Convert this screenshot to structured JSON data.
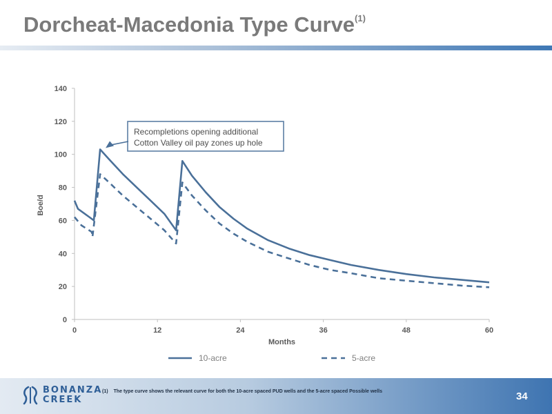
{
  "slide": {
    "title": "Dorcheat-Macedonia Type Curve",
    "title_superscript": "(1)",
    "page_number": "34",
    "footnote_marker": "(1)",
    "footnote_text": "The type curve shows the relevant curve for both the 10-acre spaced PUD wells and the 5-acre spaced Possible wells",
    "logo_line1": "BONANZA",
    "logo_line2": "CREEK"
  },
  "colors": {
    "series": "#4a7099",
    "axis_text": "#595959",
    "callout_border": "#5b7fa4",
    "title": "#7a7a7a"
  },
  "chart_data": {
    "type": "line",
    "xlabel": "Months",
    "ylabel": "Boe/d",
    "xlim": [
      0,
      60
    ],
    "ylim": [
      0,
      140
    ],
    "x_ticks": [
      0,
      12,
      24,
      36,
      48,
      60
    ],
    "y_ticks": [
      0,
      20,
      40,
      60,
      80,
      100,
      120,
      140
    ],
    "grid": false,
    "legend_position": "bottom",
    "annotation": {
      "lines": [
        "Recompletions opening additional",
        "Cotton Valley oil pay zones up hole"
      ],
      "arrow_target": [
        3.7,
        103
      ]
    },
    "series": [
      {
        "name": "10-acre",
        "style": "solid",
        "points": [
          [
            0,
            72
          ],
          [
            0.5,
            67
          ],
          [
            1.5,
            64
          ],
          [
            2.8,
            60
          ],
          [
            3.7,
            103
          ],
          [
            5,
            97
          ],
          [
            7,
            88
          ],
          [
            9,
            80
          ],
          [
            11,
            72
          ],
          [
            13,
            64
          ],
          [
            14.7,
            54
          ],
          [
            15.6,
            96
          ],
          [
            17,
            87
          ],
          [
            19,
            77
          ],
          [
            21,
            68
          ],
          [
            23,
            61
          ],
          [
            25,
            55
          ],
          [
            28,
            48
          ],
          [
            31,
            43
          ],
          [
            34,
            39
          ],
          [
            37,
            36
          ],
          [
            40,
            33
          ],
          [
            44,
            30
          ],
          [
            48,
            27.5
          ],
          [
            52,
            25.5
          ],
          [
            56,
            24
          ],
          [
            60,
            22.5
          ]
        ]
      },
      {
        "name": "5-acre",
        "style": "dashed",
        "points": [
          [
            0,
            62
          ],
          [
            1,
            57
          ],
          [
            2.5,
            53
          ],
          [
            2.6,
            50
          ],
          [
            3.7,
            88
          ],
          [
            5,
            83
          ],
          [
            7,
            75
          ],
          [
            9,
            68
          ],
          [
            11,
            61
          ],
          [
            13,
            54
          ],
          [
            14.7,
            46
          ],
          [
            15.6,
            83
          ],
          [
            17,
            75
          ],
          [
            19,
            66
          ],
          [
            21,
            58
          ],
          [
            23,
            52
          ],
          [
            25,
            47
          ],
          [
            28,
            41
          ],
          [
            31,
            37
          ],
          [
            34,
            33
          ],
          [
            37,
            30
          ],
          [
            40,
            28
          ],
          [
            44,
            25
          ],
          [
            48,
            23.5
          ],
          [
            52,
            22
          ],
          [
            56,
            20.5
          ],
          [
            60,
            19.5
          ]
        ]
      }
    ]
  }
}
